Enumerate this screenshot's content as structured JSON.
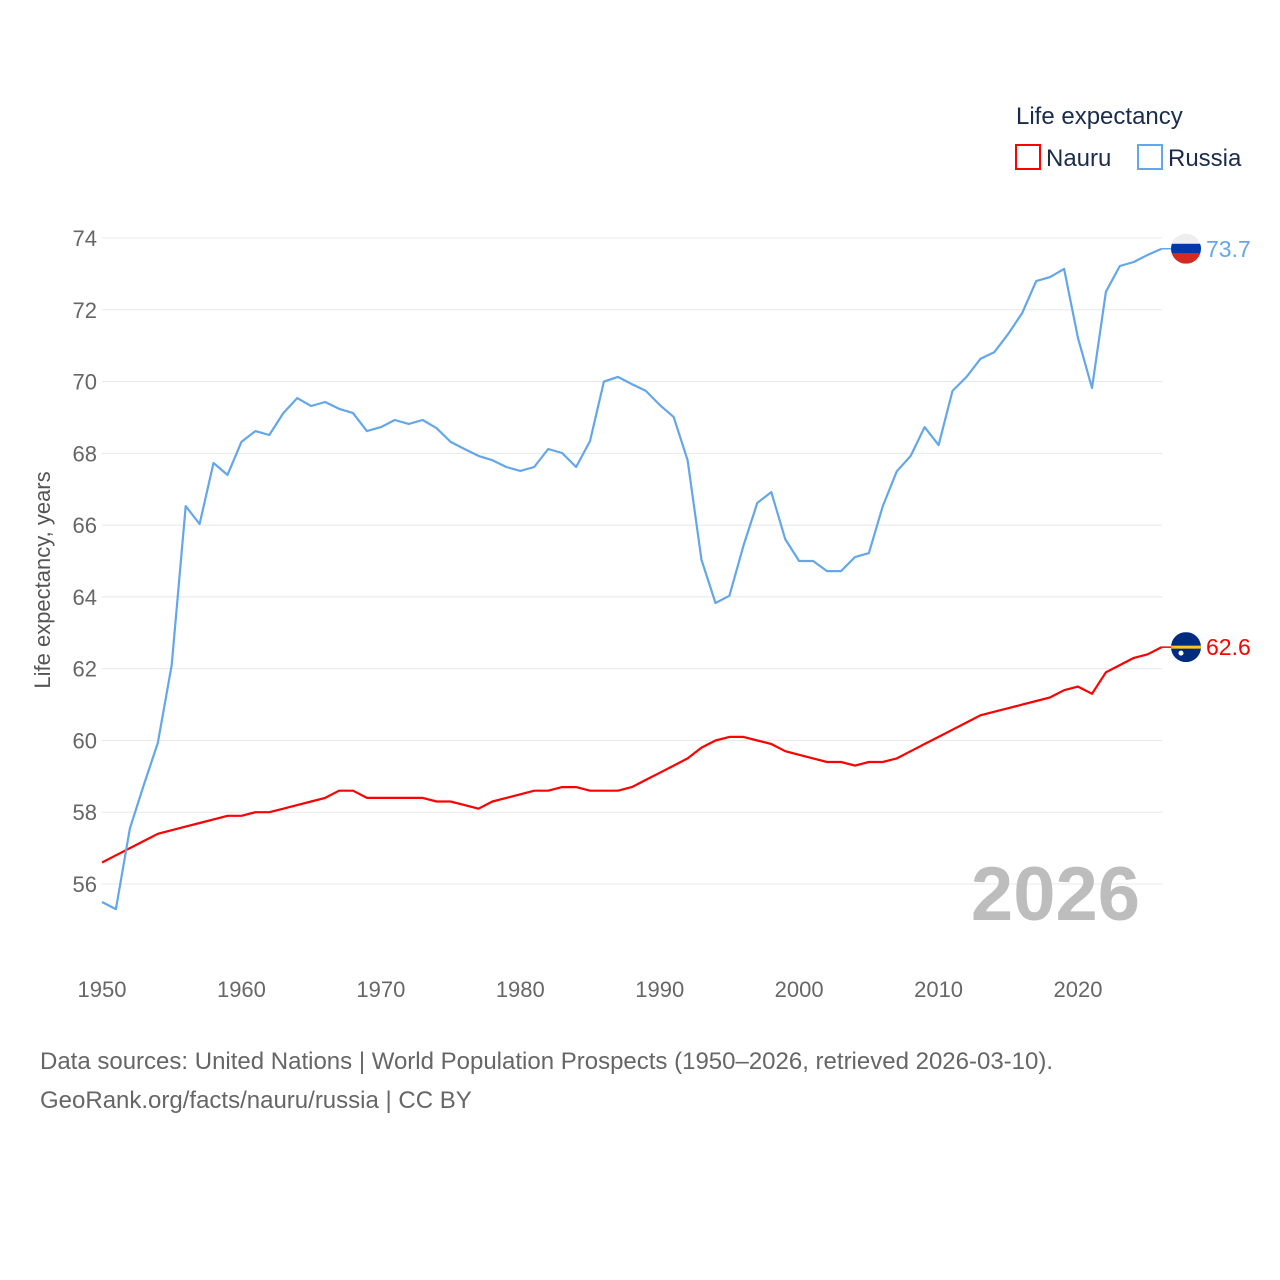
{
  "chart_data": {
    "type": "line",
    "title": "",
    "legend_title": "Life expectancy",
    "legend_position": "top-right",
    "ylabel": "Life expectancy, years",
    "xlabel": "",
    "xlim": [
      1950,
      2026
    ],
    "ylim": [
      54.5,
      74.5
    ],
    "x_ticks": [
      1950,
      1960,
      1970,
      1980,
      1990,
      2000,
      2010,
      2020
    ],
    "y_ticks": [
      56,
      58,
      60,
      62,
      64,
      66,
      68,
      70,
      72,
      74
    ],
    "grid": true,
    "year_watermark": "2026",
    "x": [
      1950,
      1951,
      1952,
      1953,
      1954,
      1955,
      1956,
      1957,
      1958,
      1959,
      1960,
      1961,
      1962,
      1963,
      1964,
      1965,
      1966,
      1967,
      1968,
      1969,
      1970,
      1971,
      1972,
      1973,
      1974,
      1975,
      1976,
      1977,
      1978,
      1979,
      1980,
      1981,
      1982,
      1983,
      1984,
      1985,
      1986,
      1987,
      1988,
      1989,
      1990,
      1991,
      1992,
      1993,
      1994,
      1995,
      1996,
      1997,
      1998,
      1999,
      2000,
      2001,
      2002,
      2003,
      2004,
      2005,
      2006,
      2007,
      2008,
      2009,
      2010,
      2011,
      2012,
      2013,
      2014,
      2015,
      2016,
      2017,
      2018,
      2019,
      2020,
      2021,
      2022,
      2023,
      2024,
      2025,
      2026
    ],
    "series": [
      {
        "name": "Nauru",
        "color": "#ff0000",
        "end_label": "62.6",
        "values": [
          56.6,
          56.8,
          57.0,
          57.2,
          57.4,
          57.5,
          57.6,
          57.7,
          57.8,
          57.9,
          57.9,
          58.0,
          58.0,
          58.1,
          58.2,
          58.3,
          58.4,
          58.6,
          58.6,
          58.4,
          58.4,
          58.4,
          58.4,
          58.4,
          58.3,
          58.3,
          58.2,
          58.1,
          58.3,
          58.4,
          58.5,
          58.6,
          58.6,
          58.7,
          58.7,
          58.6,
          58.6,
          58.6,
          58.7,
          58.9,
          59.1,
          59.3,
          59.5,
          59.8,
          60.0,
          60.1,
          60.1,
          60.0,
          59.9,
          59.7,
          59.6,
          59.5,
          59.4,
          59.4,
          59.3,
          59.4,
          59.4,
          59.5,
          59.7,
          59.9,
          60.1,
          60.3,
          60.5,
          60.7,
          60.8,
          60.9,
          61.0,
          61.1,
          61.2,
          61.4,
          61.5,
          61.3,
          61.9,
          62.1,
          62.3,
          62.4,
          62.6
        ]
      },
      {
        "name": "Russia",
        "color": "#63a7ea",
        "end_label": "73.7",
        "values": [
          55.5,
          55.3,
          57.55,
          58.76,
          59.93,
          62.1,
          66.53,
          66.03,
          67.73,
          67.4,
          68.32,
          68.62,
          68.51,
          69.12,
          69.54,
          69.32,
          69.43,
          69.24,
          69.12,
          68.62,
          68.73,
          68.93,
          68.82,
          68.93,
          68.7,
          68.32,
          68.12,
          67.93,
          67.81,
          67.62,
          67.51,
          67.62,
          68.12,
          68.01,
          67.62,
          68.34,
          70.0,
          70.13,
          69.93,
          69.74,
          69.35,
          69.01,
          67.81,
          65.03,
          63.83,
          64.03,
          65.42,
          66.62,
          66.92,
          65.61,
          65.0,
          65.0,
          64.72,
          64.72,
          65.11,
          65.22,
          66.53,
          67.5,
          67.93,
          68.73,
          68.23,
          69.74,
          70.13,
          70.63,
          70.82,
          71.33,
          71.91,
          72.8,
          72.91,
          73.14,
          71.21,
          69.82,
          72.5,
          73.22,
          73.33,
          73.53,
          73.7
        ]
      }
    ]
  },
  "footer": {
    "source_line": "Data sources: United Nations | World Population Prospects (1950–2026, retrieved 2026-03-10).",
    "credit_line": "GeoRank.org/facts/nauru/russia | CC BY"
  }
}
